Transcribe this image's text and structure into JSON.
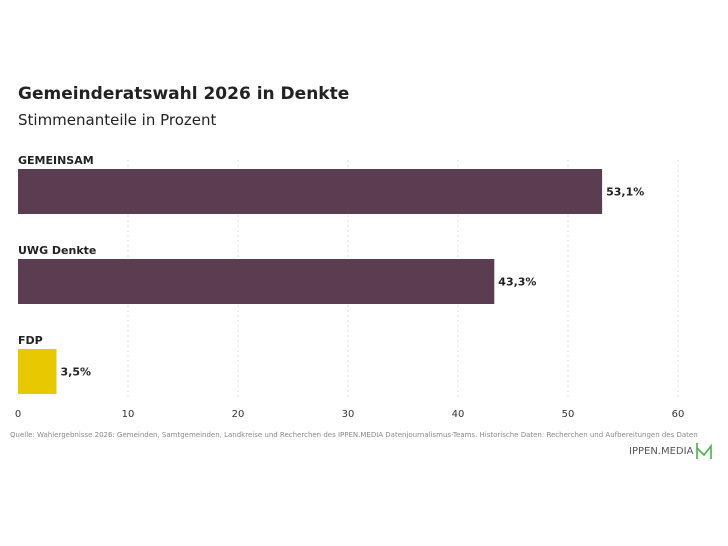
{
  "header": {
    "title": "Gemeinderatswahl 2026 in Denkte",
    "subtitle": "Stimmenanteile in Prozent"
  },
  "chart_data": {
    "type": "bar",
    "orientation": "horizontal",
    "categories": [
      "GEMEINSAM",
      "UWG Denkte",
      "FDP"
    ],
    "values": [
      53.1,
      43.3,
      3.5
    ],
    "value_labels": [
      "53,1%",
      "43,3%",
      "3,5%"
    ],
    "colors": [
      "#5a3d50",
      "#5a3d50",
      "#e8c800"
    ],
    "xlim": [
      0,
      60
    ],
    "xticks": [
      "0",
      "10",
      "20",
      "30",
      "40",
      "50",
      "60"
    ],
    "grid": true
  },
  "footer": {
    "source": "Quelle: Wahlergebnisse 2026: Gemeinden, Samtgemeinden, Landkreise und Recherchen des IPPEN.MEDIA Datenjournalismus-Teams. Historische Daten: Recherchen und Aufbereitungen des Daten",
    "brand": "IPPEN.MEDIA",
    "brand_icon": "ippen-media-m-logo-icon",
    "brand_color": "#4caf50"
  }
}
